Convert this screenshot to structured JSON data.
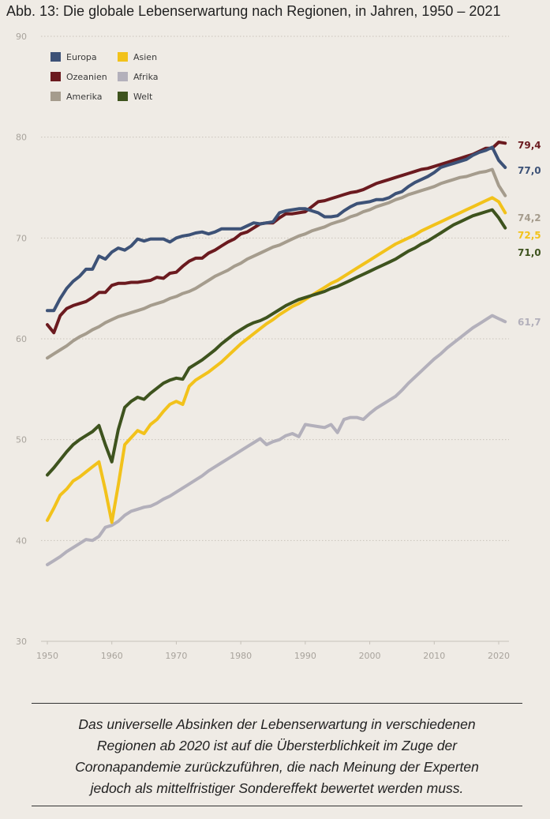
{
  "title": "Abb. 13: Die globale Lebenserwartung nach Regionen, in Jahren, 1950 – 2021",
  "caption": {
    "lines": [
      "Das universelle Absinken der Lebenserwartung in verschiedenen",
      "Regionen ab 2020 ist auf die Übersterblichkeit im Zuge der",
      "Coronapandemie zurückzuführen, die nach Meinung der Experten",
      "jedoch als mittelfristiger Sondereffekt bewertet werden muss."
    ]
  },
  "chart_data": {
    "type": "line",
    "title": "Abb. 13: Die globale Lebenserwartung nach Regionen, in Jahren, 1950 – 2021",
    "xlim": [
      1950,
      2021
    ],
    "ylim": [
      30,
      90
    ],
    "x_ticks": [
      1950,
      1960,
      1970,
      1980,
      1990,
      2000,
      2010,
      2020
    ],
    "y_ticks": [
      30,
      40,
      50,
      60,
      70,
      80,
      90
    ],
    "grid": "horizontal dotted",
    "legend_position": "top-left",
    "x": [
      1950,
      1951,
      1952,
      1953,
      1954,
      1955,
      1956,
      1957,
      1958,
      1959,
      1960,
      1961,
      1962,
      1963,
      1964,
      1965,
      1966,
      1967,
      1968,
      1969,
      1970,
      1971,
      1972,
      1973,
      1974,
      1975,
      1976,
      1977,
      1978,
      1979,
      1980,
      1981,
      1982,
      1983,
      1984,
      1985,
      1986,
      1987,
      1988,
      1989,
      1990,
      1991,
      1992,
      1993,
      1994,
      1995,
      1996,
      1997,
      1998,
      1999,
      2000,
      2001,
      2002,
      2003,
      2004,
      2005,
      2006,
      2007,
      2008,
      2009,
      2010,
      2011,
      2012,
      2013,
      2014,
      2015,
      2016,
      2017,
      2018,
      2019,
      2020,
      2021
    ],
    "series": [
      {
        "name": "Europa",
        "color": "#3d5277",
        "end_label": "77,0",
        "values": [
          62.8,
          62.8,
          64.0,
          65.0,
          65.7,
          66.2,
          66.9,
          66.9,
          68.2,
          67.9,
          68.6,
          69.0,
          68.8,
          69.2,
          69.9,
          69.7,
          69.9,
          69.9,
          69.9,
          69.6,
          70.0,
          70.2,
          70.3,
          70.5,
          70.6,
          70.4,
          70.6,
          70.9,
          70.9,
          70.9,
          70.9,
          71.2,
          71.5,
          71.4,
          71.5,
          71.6,
          72.5,
          72.7,
          72.8,
          72.9,
          72.9,
          72.7,
          72.5,
          72.1,
          72.1,
          72.2,
          72.7,
          73.1,
          73.4,
          73.5,
          73.6,
          73.8,
          73.8,
          74.0,
          74.4,
          74.6,
          75.1,
          75.5,
          75.8,
          76.1,
          76.5,
          77.0,
          77.2,
          77.4,
          77.6,
          77.8,
          78.2,
          78.5,
          78.7,
          79.0,
          77.7,
          77.0
        ]
      },
      {
        "name": "Ozeanien",
        "color": "#6b1a1f",
        "end_label": "79,4",
        "values": [
          61.4,
          60.6,
          62.3,
          63.0,
          63.3,
          63.5,
          63.7,
          64.1,
          64.6,
          64.6,
          65.3,
          65.5,
          65.5,
          65.6,
          65.6,
          65.7,
          65.8,
          66.1,
          66.0,
          66.5,
          66.6,
          67.2,
          67.7,
          68.0,
          68.0,
          68.5,
          68.8,
          69.2,
          69.6,
          69.9,
          70.4,
          70.6,
          71.0,
          71.4,
          71.5,
          71.5,
          72.0,
          72.4,
          72.4,
          72.5,
          72.6,
          73.1,
          73.6,
          73.7,
          73.9,
          74.1,
          74.3,
          74.5,
          74.6,
          74.8,
          75.1,
          75.4,
          75.6,
          75.8,
          76.0,
          76.2,
          76.4,
          76.6,
          76.8,
          76.9,
          77.1,
          77.3,
          77.5,
          77.7,
          77.9,
          78.1,
          78.3,
          78.6,
          78.9,
          78.9,
          79.5,
          79.4
        ]
      },
      {
        "name": "Amerika",
        "color": "#a59c8d",
        "end_label": "74,2",
        "values": [
          58.1,
          58.5,
          58.9,
          59.3,
          59.8,
          60.2,
          60.5,
          60.9,
          61.2,
          61.6,
          61.9,
          62.2,
          62.4,
          62.6,
          62.8,
          63.0,
          63.3,
          63.5,
          63.7,
          64.0,
          64.2,
          64.5,
          64.7,
          65.0,
          65.4,
          65.8,
          66.2,
          66.5,
          66.8,
          67.2,
          67.5,
          67.9,
          68.2,
          68.5,
          68.8,
          69.1,
          69.3,
          69.6,
          69.9,
          70.2,
          70.4,
          70.7,
          70.9,
          71.1,
          71.4,
          71.6,
          71.8,
          72.1,
          72.3,
          72.6,
          72.8,
          73.1,
          73.3,
          73.5,
          73.8,
          74.0,
          74.3,
          74.5,
          74.7,
          74.9,
          75.1,
          75.4,
          75.6,
          75.8,
          76.0,
          76.1,
          76.3,
          76.5,
          76.6,
          76.8,
          75.2,
          74.2
        ]
      },
      {
        "name": "Asien",
        "color": "#f2c21b",
        "end_label": "72,5",
        "values": [
          42.0,
          43.2,
          44.5,
          45.1,
          45.9,
          46.3,
          46.8,
          47.3,
          47.8,
          45.0,
          41.8,
          45.5,
          49.5,
          50.2,
          50.9,
          50.6,
          51.5,
          52.0,
          52.8,
          53.5,
          53.8,
          53.5,
          55.3,
          55.9,
          56.3,
          56.7,
          57.2,
          57.7,
          58.3,
          58.9,
          59.5,
          60.0,
          60.5,
          61.0,
          61.5,
          61.9,
          62.4,
          62.8,
          63.2,
          63.5,
          63.9,
          64.3,
          64.7,
          65.1,
          65.5,
          65.8,
          66.2,
          66.6,
          67.0,
          67.4,
          67.8,
          68.2,
          68.6,
          69.0,
          69.4,
          69.7,
          70.0,
          70.3,
          70.7,
          71.0,
          71.3,
          71.6,
          71.9,
          72.2,
          72.5,
          72.8,
          73.1,
          73.4,
          73.7,
          74.0,
          73.6,
          72.5
        ]
      },
      {
        "name": "Afrika",
        "color": "#b3b0bb",
        "end_label": "61,7",
        "values": [
          37.6,
          38.0,
          38.4,
          38.9,
          39.3,
          39.7,
          40.1,
          40.0,
          40.4,
          41.3,
          41.5,
          41.9,
          42.5,
          42.9,
          43.1,
          43.3,
          43.4,
          43.7,
          44.1,
          44.4,
          44.8,
          45.2,
          45.6,
          46.0,
          46.4,
          46.9,
          47.3,
          47.7,
          48.1,
          48.5,
          48.9,
          49.3,
          49.7,
          50.1,
          49.5,
          49.8,
          50.0,
          50.4,
          50.6,
          50.3,
          51.5,
          51.4,
          51.3,
          51.2,
          51.5,
          50.7,
          52.0,
          52.2,
          52.2,
          52.0,
          52.6,
          53.1,
          53.5,
          53.9,
          54.3,
          54.9,
          55.6,
          56.2,
          56.8,
          57.4,
          58.0,
          58.5,
          59.1,
          59.6,
          60.1,
          60.6,
          61.1,
          61.5,
          61.9,
          62.3,
          62.0,
          61.7
        ]
      },
      {
        "name": "Welt",
        "color": "#3e531e",
        "end_label": "71,0",
        "values": [
          46.5,
          47.2,
          48.0,
          48.8,
          49.5,
          50.0,
          50.4,
          50.8,
          51.4,
          49.5,
          47.8,
          51.0,
          53.2,
          53.8,
          54.2,
          54.0,
          54.6,
          55.1,
          55.6,
          55.9,
          56.1,
          56.0,
          57.1,
          57.5,
          57.9,
          58.4,
          58.9,
          59.5,
          60.0,
          60.5,
          60.9,
          61.3,
          61.6,
          61.8,
          62.1,
          62.5,
          62.9,
          63.3,
          63.6,
          63.9,
          64.1,
          64.3,
          64.5,
          64.7,
          65.0,
          65.2,
          65.5,
          65.8,
          66.1,
          66.4,
          66.7,
          67.0,
          67.3,
          67.6,
          67.9,
          68.3,
          68.7,
          69.0,
          69.4,
          69.7,
          70.1,
          70.5,
          70.9,
          71.3,
          71.6,
          71.9,
          72.2,
          72.4,
          72.6,
          72.8,
          72.0,
          71.0
        ]
      }
    ]
  }
}
